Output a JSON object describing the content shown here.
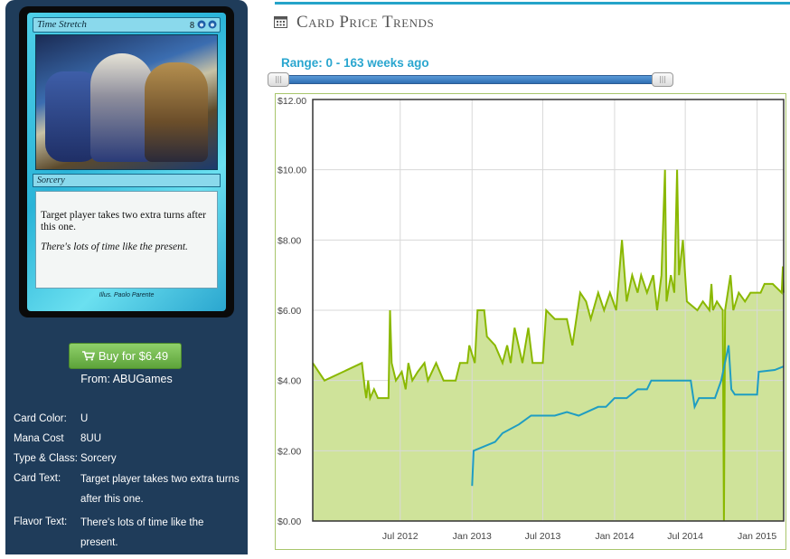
{
  "card": {
    "name": "Time Stretch",
    "mana_cost_display": "8",
    "type_line": "Sorcery",
    "rules_text": "Target player takes two extra turns after this one.",
    "flavor_text": "There's lots of time like the present.",
    "artist_line": "Illus. Paolo Parente"
  },
  "buy": {
    "label": "Buy for $6.49",
    "from": "From: ABUGames"
  },
  "info": [
    {
      "label": "Card Color:",
      "value": "U"
    },
    {
      "label": "Mana Cost",
      "value": "8UU"
    },
    {
      "label": "Type & Class:",
      "value": "Sorcery"
    },
    {
      "label": "Card Text:",
      "value": "Target player takes two extra turns after this one."
    },
    {
      "label": "Flavor Text:",
      "value": "There's lots of time like the present."
    }
  ],
  "section_title": "Card Price Trends",
  "range_label": "Range: 0 - 163 weeks ago",
  "slider": {
    "min_weeks": 0,
    "max_weeks": 163,
    "handle_glyph": "|||"
  },
  "colors": {
    "accent": "#25a3c9",
    "series_green": "#8ab800",
    "series_green_fill": "#cfe39a",
    "series_blue": "#1f9dc2",
    "panel_bg": "#1f3c5a",
    "buy_button": "#6ab544"
  },
  "chart_data": {
    "type": "area",
    "title": "",
    "xlabel": "",
    "ylabel": "",
    "ylim": [
      0,
      12
    ],
    "yticks": [
      "$0.00",
      "$2.00",
      "$4.00",
      "$6.00",
      "$8.00",
      "$10.00",
      "$12.00"
    ],
    "ytick_values": [
      0,
      2,
      4,
      6,
      8,
      10,
      12
    ],
    "xlim": [
      "2011-11-20",
      "2015-03-10"
    ],
    "xticks": [
      {
        "label": "Jul 2012",
        "date": "2012-07-01"
      },
      {
        "label": "Jan 2013",
        "date": "2013-01-01"
      },
      {
        "label": "Jul 2013",
        "date": "2013-07-01"
      },
      {
        "label": "Jan 2014",
        "date": "2014-01-01"
      },
      {
        "label": "Jul 2014",
        "date": "2014-07-01"
      },
      {
        "label": "Jan 2015",
        "date": "2015-01-01"
      }
    ],
    "grid": true,
    "series": [
      {
        "color": "#8ab800",
        "fill": "#cfe39a",
        "points": [
          [
            "2011-11-20",
            4.5
          ],
          [
            "2011-12-20",
            4.0
          ],
          [
            "2012-03-25",
            4.5
          ],
          [
            "2012-04-01",
            3.8
          ],
          [
            "2012-04-05",
            3.5
          ],
          [
            "2012-04-10",
            4.0
          ],
          [
            "2012-04-15",
            3.5
          ],
          [
            "2012-04-25",
            3.75
          ],
          [
            "2012-05-05",
            3.5
          ],
          [
            "2012-06-01",
            3.5
          ],
          [
            "2012-06-05",
            6.0
          ],
          [
            "2012-06-09",
            4.5
          ],
          [
            "2012-06-20",
            4.0
          ],
          [
            "2012-07-05",
            4.25
          ],
          [
            "2012-07-15",
            3.75
          ],
          [
            "2012-07-22",
            4.5
          ],
          [
            "2012-08-01",
            4.0
          ],
          [
            "2012-08-15",
            4.25
          ],
          [
            "2012-09-01",
            4.5
          ],
          [
            "2012-09-10",
            4.0
          ],
          [
            "2012-10-01",
            4.5
          ],
          [
            "2012-10-20",
            4.0
          ],
          [
            "2012-11-20",
            4.0
          ],
          [
            "2012-12-01",
            4.5
          ],
          [
            "2012-12-20",
            4.5
          ],
          [
            "2012-12-25",
            5.0
          ],
          [
            "2013-01-08",
            4.5
          ],
          [
            "2013-01-15",
            6.0
          ],
          [
            "2013-02-01",
            6.0
          ],
          [
            "2013-02-08",
            5.25
          ],
          [
            "2013-03-01",
            5.0
          ],
          [
            "2013-03-20",
            4.5
          ],
          [
            "2013-04-01",
            5.0
          ],
          [
            "2013-04-10",
            4.5
          ],
          [
            "2013-04-20",
            5.5
          ],
          [
            "2013-05-10",
            4.5
          ],
          [
            "2013-05-25",
            5.5
          ],
          [
            "2013-06-05",
            4.5
          ],
          [
            "2013-07-01",
            4.5
          ],
          [
            "2013-07-10",
            6.0
          ],
          [
            "2013-08-01",
            5.75
          ],
          [
            "2013-09-01",
            5.75
          ],
          [
            "2013-09-15",
            5.0
          ],
          [
            "2013-09-25",
            5.75
          ],
          [
            "2013-10-05",
            6.5
          ],
          [
            "2013-10-20",
            6.25
          ],
          [
            "2013-11-01",
            5.75
          ],
          [
            "2013-11-20",
            6.5
          ],
          [
            "2013-12-05",
            6.0
          ],
          [
            "2013-12-20",
            6.5
          ],
          [
            "2014-01-05",
            6.0
          ],
          [
            "2014-01-20",
            8.0
          ],
          [
            "2014-02-01",
            6.25
          ],
          [
            "2014-02-15",
            7.0
          ],
          [
            "2014-03-01",
            6.5
          ],
          [
            "2014-03-10",
            7.0
          ],
          [
            "2014-03-25",
            6.5
          ],
          [
            "2014-04-10",
            7.0
          ],
          [
            "2014-04-20",
            6.0
          ],
          [
            "2014-05-01",
            7.0
          ],
          [
            "2014-05-10",
            10.0
          ],
          [
            "2014-05-14",
            6.25
          ],
          [
            "2014-05-25",
            7.0
          ],
          [
            "2014-06-03",
            6.5
          ],
          [
            "2014-06-10",
            10.0
          ],
          [
            "2014-06-15",
            7.0
          ],
          [
            "2014-06-25",
            8.0
          ],
          [
            "2014-07-05",
            6.25
          ],
          [
            "2014-08-01",
            6.0
          ],
          [
            "2014-08-15",
            6.25
          ],
          [
            "2014-09-01",
            6.0
          ],
          [
            "2014-09-06",
            6.75
          ],
          [
            "2014-09-10",
            6.0
          ],
          [
            "2014-09-20",
            6.25
          ],
          [
            "2014-10-05",
            6.0
          ],
          [
            "2014-10-08",
            0.0
          ],
          [
            "2014-10-11",
            6.0
          ],
          [
            "2014-10-25",
            7.0
          ],
          [
            "2014-11-01",
            6.0
          ],
          [
            "2014-11-15",
            6.5
          ],
          [
            "2014-12-01",
            6.25
          ],
          [
            "2014-12-15",
            6.5
          ],
          [
            "2015-01-10",
            6.5
          ],
          [
            "2015-01-20",
            6.75
          ],
          [
            "2015-02-10",
            6.75
          ],
          [
            "2015-03-05",
            6.5
          ],
          [
            "2015-03-08",
            7.25
          ],
          [
            "2015-03-10",
            6.5
          ]
        ]
      },
      {
        "color": "#1f9dc2",
        "points": [
          [
            "2013-01-01",
            1.0
          ],
          [
            "2013-01-05",
            2.0
          ],
          [
            "2013-03-01",
            2.25
          ],
          [
            "2013-03-20",
            2.5
          ],
          [
            "2013-05-01",
            2.75
          ],
          [
            "2013-06-01",
            3.0
          ],
          [
            "2013-08-01",
            3.0
          ],
          [
            "2013-09-01",
            3.1
          ],
          [
            "2013-10-01",
            3.0
          ],
          [
            "2013-11-20",
            3.25
          ],
          [
            "2013-12-10",
            3.25
          ],
          [
            "2014-01-01",
            3.5
          ],
          [
            "2014-02-01",
            3.5
          ],
          [
            "2014-03-01",
            3.75
          ],
          [
            "2014-03-25",
            3.75
          ],
          [
            "2014-04-05",
            4.0
          ],
          [
            "2014-06-05",
            4.0
          ],
          [
            "2014-07-15",
            4.0
          ],
          [
            "2014-07-25",
            3.25
          ],
          [
            "2014-08-05",
            3.5
          ],
          [
            "2014-09-15",
            3.5
          ],
          [
            "2014-10-01",
            4.0
          ],
          [
            "2014-10-20",
            5.0
          ],
          [
            "2014-10-27",
            3.75
          ],
          [
            "2014-11-05",
            3.6
          ],
          [
            "2014-12-01",
            3.6
          ],
          [
            "2015-01-01",
            3.6
          ],
          [
            "2015-01-05",
            4.25
          ],
          [
            "2015-02-15",
            4.3
          ],
          [
            "2015-03-10",
            4.4
          ]
        ]
      }
    ]
  }
}
